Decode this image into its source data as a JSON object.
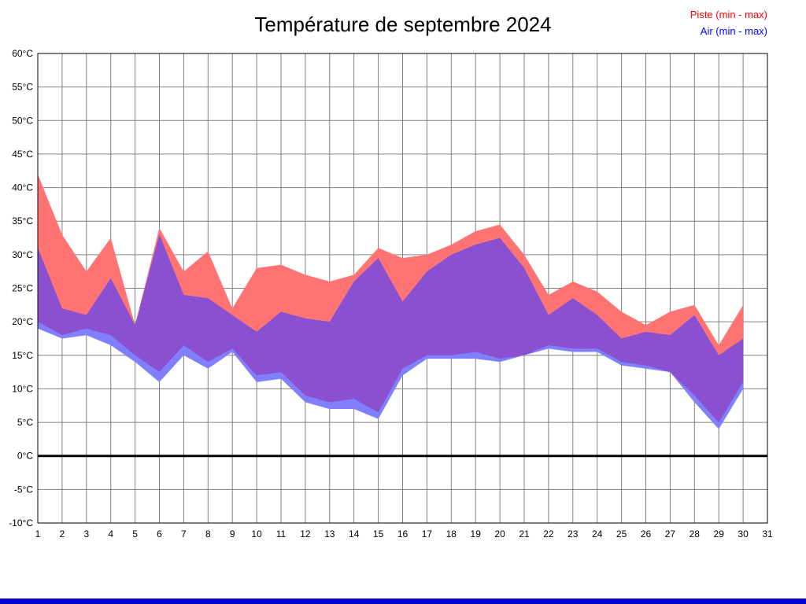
{
  "title": "Température de septembre 2024",
  "legend": {
    "piste": {
      "label": "Piste (min - max)",
      "color": "#ff0000"
    },
    "air": {
      "label": "Air (min - max)",
      "color": "#0000ff"
    }
  },
  "colors": {
    "piste_band": "#ff7373",
    "air_band": "#8080ff",
    "overlap_band": "#8a50d0",
    "grid": "#808080",
    "zero_line": "#000000",
    "plot_border": "#000000",
    "bottom_bar": "#0000cc"
  },
  "chart_data": {
    "type": "area",
    "title": "Température de septembre 2024",
    "unit": "°C",
    "x_days": [
      1,
      2,
      3,
      4,
      5,
      6,
      7,
      8,
      9,
      10,
      11,
      12,
      13,
      14,
      15,
      16,
      17,
      18,
      19,
      20,
      21,
      22,
      23,
      24,
      25,
      26,
      27,
      28,
      29,
      30
    ],
    "series": [
      {
        "name": "Piste (min - max)",
        "max": [
          42,
          33,
          27.5,
          32.5,
          19.5,
          34,
          27.5,
          30.5,
          22,
          28,
          28.5,
          27,
          26,
          27,
          31,
          29.5,
          30,
          31.5,
          33.5,
          34.5,
          30,
          24,
          26,
          24.5,
          21.5,
          19.5,
          21.5,
          22.5,
          16.5,
          22.5
        ],
        "min": [
          20,
          18,
          19,
          18,
          15,
          12.5,
          16.5,
          14,
          16,
          12,
          12.5,
          9,
          8,
          8.5,
          6.5,
          13,
          15,
          15,
          15.5,
          14.5,
          15,
          16.5,
          16,
          16,
          14,
          13.5,
          12.5,
          9,
          5,
          11
        ]
      },
      {
        "name": "Air (min - max)",
        "max": [
          31,
          22,
          21,
          26.5,
          19.5,
          33,
          24,
          23.5,
          21,
          18.5,
          21.5,
          20.5,
          20,
          26,
          29.5,
          23,
          27.5,
          30,
          31.5,
          32.5,
          28,
          21,
          23.5,
          21,
          17.5,
          18.5,
          18,
          21,
          15,
          17.5
        ],
        "min": [
          19,
          17.5,
          18,
          16.5,
          14,
          11,
          15,
          13,
          15.5,
          11,
          11.5,
          8,
          7,
          7,
          5.5,
          12,
          14.5,
          14.5,
          14.5,
          14,
          15,
          16,
          15.5,
          15.5,
          13.5,
          13,
          12.5,
          8,
          4,
          10
        ]
      }
    ],
    "ylim": [
      -10,
      60
    ],
    "ytick_step": 5,
    "ytick_suffix": "°C",
    "xticks": [
      1,
      2,
      3,
      4,
      5,
      6,
      7,
      8,
      9,
      10,
      11,
      12,
      13,
      14,
      15,
      16,
      17,
      18,
      19,
      20,
      21,
      22,
      23,
      24,
      25,
      26,
      27,
      28,
      29,
      30,
      31
    ],
    "grid": true,
    "zero_line_at": 0,
    "legend_position": "top-right"
  }
}
